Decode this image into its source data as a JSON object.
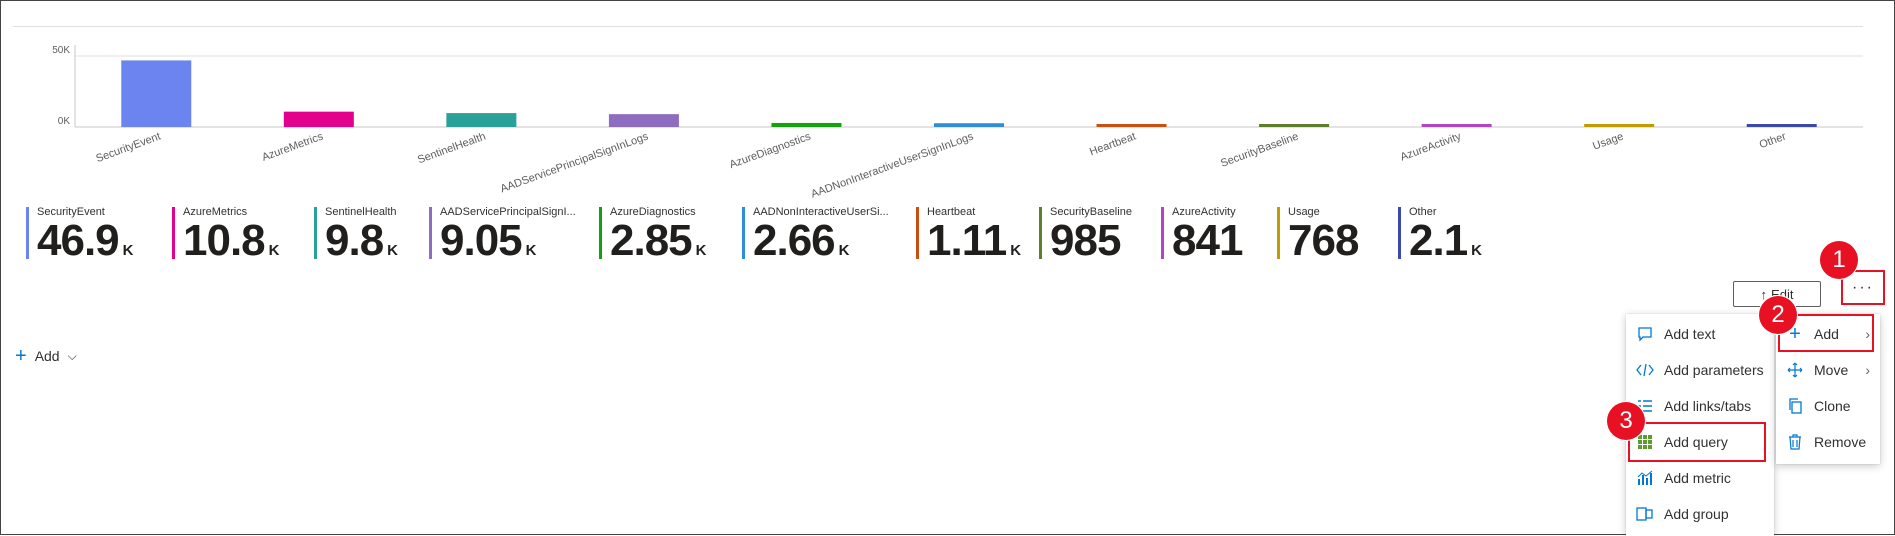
{
  "chart_data": {
    "type": "bar",
    "categories": [
      "SecurityEvent",
      "AzureMetrics",
      "SentinelHealth",
      "AADServicePrincipalSignInLogs",
      "AzureDiagnostics",
      "AADNonInteractiveUserSignInLogs",
      "Heartbeat",
      "SecurityBaseline",
      "AzureActivity",
      "Usage",
      "Other"
    ],
    "values": [
      46900,
      10800,
      9800,
      9050,
      2850,
      2660,
      1110,
      985,
      841,
      768,
      2100
    ],
    "colors": [
      "#6b84f0",
      "#e3008c",
      "#2aa198",
      "#8e6cc0",
      "#13a10e",
      "#2f8ed8",
      "#ca5010",
      "#5c7e2e",
      "#b146c2",
      "#c19c00",
      "#3b4aa8"
    ],
    "ytick_labels": [
      "50K",
      "0K"
    ],
    "ylim": [
      0,
      50000
    ]
  },
  "tiles": [
    {
      "name": "SecurityEvent",
      "value": "46.9",
      "unit": "K",
      "color": "#6b84f0"
    },
    {
      "name": "AzureMetrics",
      "value": "10.8",
      "unit": "K",
      "color": "#e3008c"
    },
    {
      "name": "SentinelHealth",
      "value": "9.8",
      "unit": "K",
      "color": "#2aa198"
    },
    {
      "name": "AADServicePrincipalSignI...",
      "value": "9.05",
      "unit": "K",
      "color": "#8e6cc0"
    },
    {
      "name": "AzureDiagnostics",
      "value": "2.85",
      "unit": "K",
      "color": "#13a10e"
    },
    {
      "name": "AADNonInteractiveUserSi...",
      "value": "2.66",
      "unit": "K",
      "color": "#2f8ed8"
    },
    {
      "name": "Heartbeat",
      "value": "1.11",
      "unit": "K",
      "color": "#ca5010"
    },
    {
      "name": "SecurityBaseline",
      "value": "985",
      "unit": "",
      "color": "#5c7e2e"
    },
    {
      "name": "AzureActivity",
      "value": "841",
      "unit": "",
      "color": "#b146c2"
    },
    {
      "name": "Usage",
      "value": "768",
      "unit": "",
      "color": "#c19c00"
    },
    {
      "name": "Other",
      "value": "2.1",
      "unit": "K",
      "color": "#3b4aa8"
    }
  ],
  "toolbar": {
    "edit_label": "Edit",
    "more_label": "···"
  },
  "add_row": {
    "label": "Add"
  },
  "context_menu": {
    "add": "Add",
    "move": "Move",
    "clone": "Clone",
    "remove": "Remove"
  },
  "add_submenu": {
    "items": [
      "Add text",
      "Add parameters",
      "Add links/tabs",
      "Add query",
      "Add metric",
      "Add group"
    ]
  },
  "callouts": [
    "1",
    "2",
    "3"
  ],
  "accent_color": "#0078d4",
  "callout_color": "#e81123"
}
